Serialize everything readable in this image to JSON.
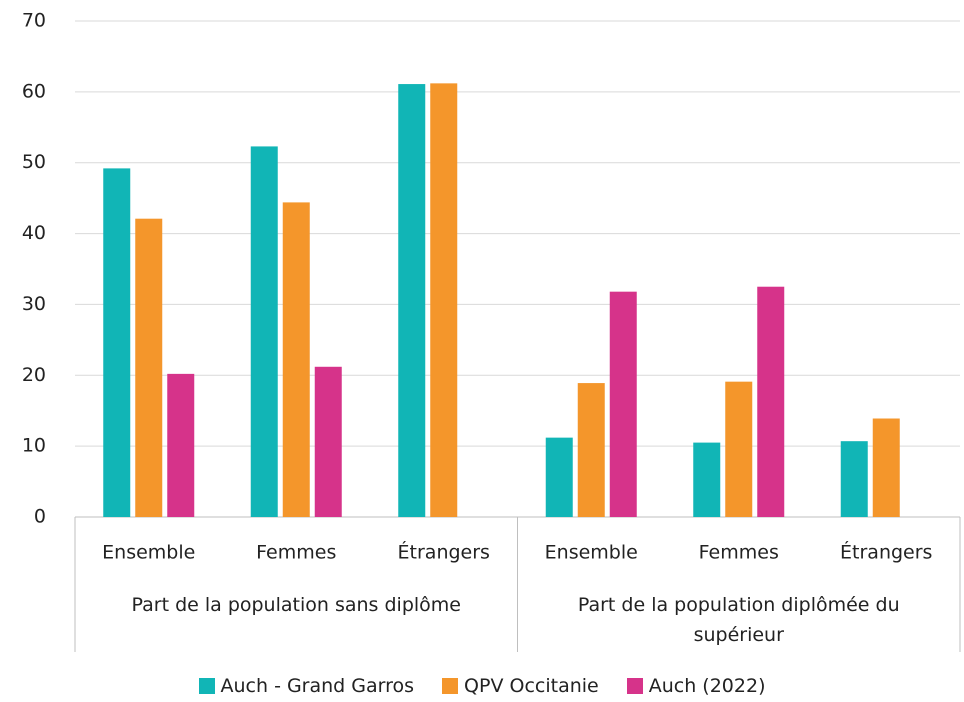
{
  "chart_data": {
    "type": "bar",
    "groups": [
      {
        "name": "Part de la population sans diplôme",
        "categories": [
          "Ensemble",
          "Femmes",
          "Étrangers"
        ]
      },
      {
        "name": "Part de la population diplômée du supérieur",
        "categories": [
          "Ensemble",
          "Femmes",
          "Étrangers"
        ]
      }
    ],
    "series": [
      {
        "name": "Auch - Grand Garros",
        "color": "#11b5b6",
        "values": [
          49.2,
          52.3,
          61.1,
          11.2,
          10.5,
          10.7
        ]
      },
      {
        "name": "QPV Occitanie",
        "color": "#f4962b",
        "values": [
          42.1,
          44.4,
          61.2,
          18.9,
          19.1,
          13.9
        ]
      },
      {
        "name": "Auch (2022)",
        "color": "#d6338a",
        "values": [
          20.2,
          21.2,
          null,
          31.8,
          32.5,
          null
        ]
      }
    ],
    "ylim": [
      0,
      70
    ],
    "yticks": [
      0,
      10,
      20,
      30,
      40,
      50,
      60,
      70
    ],
    "grid": true,
    "legend": "bottom"
  }
}
